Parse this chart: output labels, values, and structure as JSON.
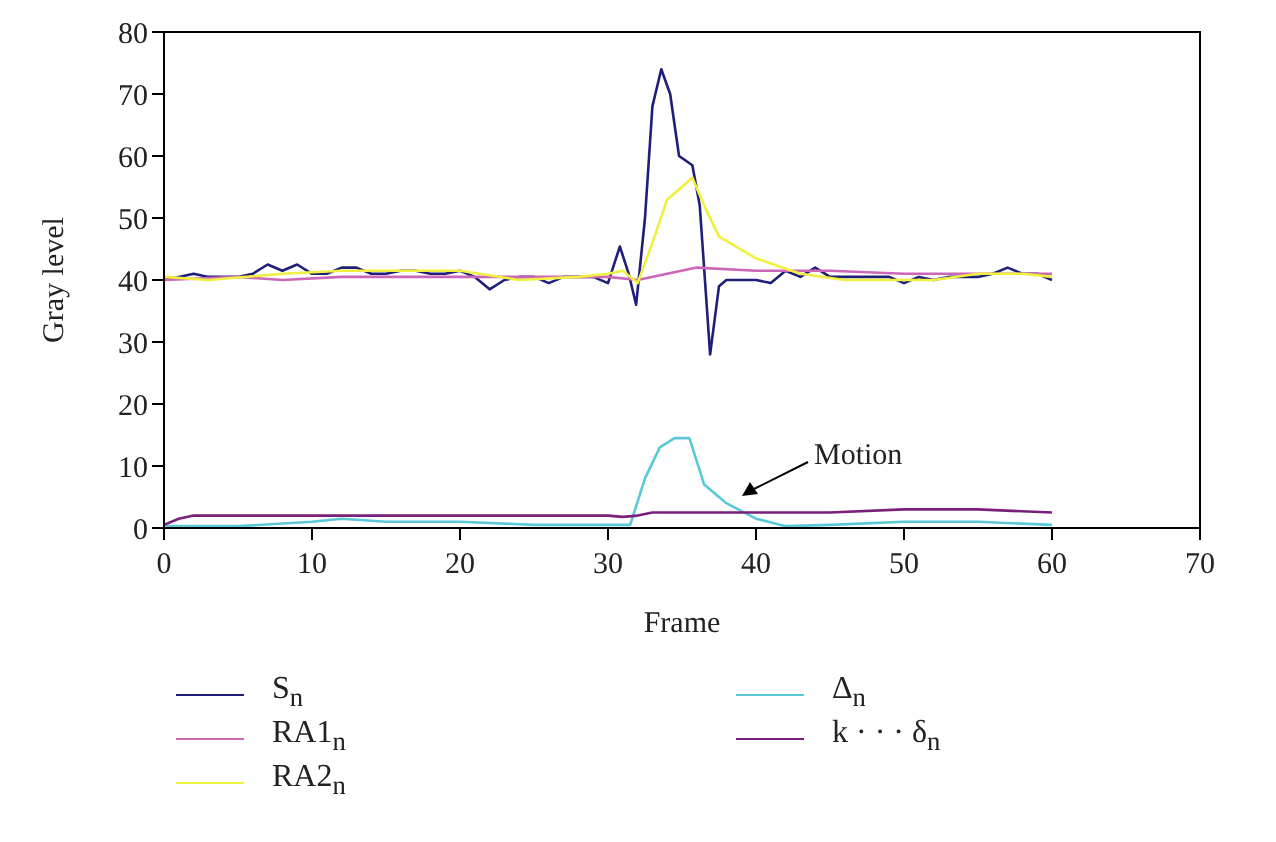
{
  "chart_data": {
    "type": "line",
    "xlabel": "Frame",
    "ylabel": "Gray level",
    "xlim": [
      0,
      70
    ],
    "xticks": [
      0,
      10,
      20,
      30,
      40,
      50,
      60,
      70
    ],
    "ylim": [
      0,
      80
    ],
    "yticks": [
      0,
      10,
      20,
      30,
      40,
      50,
      60,
      70,
      80
    ],
    "legend": "bottom",
    "marker": "none",
    "line_style": "solid",
    "annotations": [
      "Motion"
    ],
    "series": [
      {
        "name": "S$_{n}$",
        "color": "#1f1f7a",
        "x": [
          0,
          1,
          2,
          3,
          4,
          5,
          6,
          7,
          8,
          9,
          10,
          11,
          12,
          13,
          14,
          15,
          16,
          17,
          18,
          19,
          20,
          21,
          22,
          23,
          24,
          25,
          26,
          27,
          28,
          29,
          30,
          30.8,
          31.4,
          31.9,
          32.5,
          33,
          33.6,
          34.2,
          34.8,
          35.7,
          36.2,
          36.9,
          37.5,
          38,
          39,
          40,
          41,
          42,
          43,
          44,
          45,
          46,
          47,
          48,
          49,
          50,
          51,
          52,
          53,
          54,
          55,
          56,
          57,
          58,
          59,
          60
        ],
        "values": [
          40,
          40.5,
          41,
          40.5,
          40.5,
          40.5,
          41,
          42.5,
          41.5,
          42.5,
          41,
          41,
          42,
          42,
          41,
          41,
          41.5,
          41.5,
          41,
          41,
          41.5,
          40.5,
          38.5,
          40,
          40.5,
          40.5,
          39.5,
          40.5,
          40.5,
          40.5,
          39.5,
          45.4,
          41,
          36,
          50,
          68,
          74,
          70,
          60,
          58.5,
          52,
          28,
          39,
          40,
          40,
          40,
          39.5,
          41.5,
          40.5,
          42,
          40.5,
          40.5,
          40.5,
          40.5,
          40.5,
          39.5,
          40.5,
          40,
          40.5,
          40.5,
          40.5,
          41,
          42,
          41,
          41,
          40
        ]
      },
      {
        "name": "RA1$_{n}$",
        "color": "#cc66b8",
        "x": [
          0,
          5,
          8,
          12,
          20,
          30,
          32,
          34,
          36,
          40,
          45,
          50,
          55,
          60
        ],
        "values": [
          40,
          40.5,
          40,
          40.5,
          40.5,
          40.5,
          40,
          41,
          42,
          41.5,
          41.5,
          41,
          41,
          41
        ]
      },
      {
        "name": "RA2$_{n}$",
        "color": "#f0f040",
        "x": [
          0,
          3,
          8,
          12,
          16,
          20,
          24,
          28,
          30,
          31,
          32,
          33,
          34,
          35,
          35.7,
          36.5,
          37.5,
          40,
          43,
          46,
          50,
          52,
          55,
          58,
          60
        ],
        "values": [
          40.5,
          40,
          41,
          41.5,
          41.5,
          41.5,
          40,
          40.5,
          41,
          41.5,
          39.5,
          46,
          53,
          55,
          56.5,
          52,
          47,
          43.5,
          41,
          40,
          40,
          40,
          41,
          41,
          40.5
        ]
      },
      {
        "name": "Δ$_{n}$",
        "color": "#5bc8d8",
        "x": [
          0,
          5,
          10,
          12,
          15,
          20,
          25,
          30,
          31.5,
          32.5,
          33.5,
          34.5,
          35.5,
          36.5,
          38,
          40,
          42,
          45,
          50,
          55,
          60
        ],
        "values": [
          0.3,
          0.3,
          1,
          1.5,
          1,
          1,
          0.5,
          0.5,
          0.5,
          8,
          13,
          14.5,
          14.5,
          7,
          4,
          1.5,
          0.3,
          0.5,
          1,
          1,
          0.5
        ]
      },
      {
        "name": "k · · · δ$_{n}$",
        "color": "#7a1f7a",
        "x": [
          0,
          1,
          2,
          10,
          20,
          30,
          31,
          32,
          33,
          40,
          45,
          50,
          55,
          60
        ],
        "values": [
          0.5,
          1.5,
          2,
          2,
          2,
          2,
          1.8,
          2,
          2.5,
          2.5,
          2.5,
          3,
          3,
          2.5
        ]
      }
    ]
  }
}
